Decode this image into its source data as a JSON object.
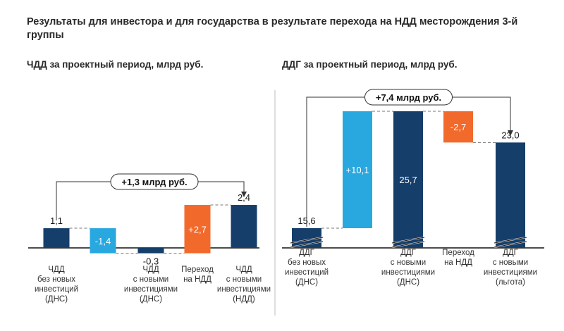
{
  "title": "Результаты для инвестора и для государства в результате перехода на НДД месторождения 3-й группы",
  "colors": {
    "dark": "#153E6B",
    "light": "#29A8E0",
    "orange": "#F26A2B",
    "divider": "#C8C8C8"
  },
  "chart_data": [
    {
      "type": "waterfall",
      "title": "ЧДД за проектный период, млрд руб.",
      "unit": "млрд руб.",
      "bars": [
        {
          "label": [
            "ЧДД",
            "без новых",
            "инвестиций",
            "(ДНС)"
          ],
          "value_label": "1,1",
          "start": 0,
          "end": 1.1,
          "kind": "total",
          "color": "#153E6B",
          "label_pos": "above"
        },
        {
          "label": [],
          "value_label": "-1,4",
          "start": 1.1,
          "end": -0.3,
          "kind": "delta",
          "color": "#29A8E0",
          "label_pos": "inside"
        },
        {
          "label": [
            "ЧДД",
            "с новыми",
            "инвестициями",
            "(ДНС)"
          ],
          "value_label": "-0,3",
          "start": 0,
          "end": -0.3,
          "kind": "total",
          "color": "#153E6B",
          "label_pos": "below"
        },
        {
          "label": [
            "Переход",
            "на НДД"
          ],
          "value_label": "+2,7",
          "start": -0.3,
          "end": 2.4,
          "kind": "delta",
          "color": "#F26A2B",
          "label_pos": "inside"
        },
        {
          "label": [
            "ЧДД",
            "с новыми",
            "инвестициями",
            "(НДД)"
          ],
          "value_label": "2,4",
          "start": 0,
          "end": 2.4,
          "kind": "total",
          "color": "#153E6B",
          "label_pos": "above"
        }
      ],
      "annotation": {
        "text": "+1,3 млрд руб.",
        "from_bar": 0,
        "to_bar": 4
      }
    },
    {
      "type": "waterfall",
      "title": "ДДГ за проектный период, млрд руб.",
      "unit": "млрд руб.",
      "axis_break": true,
      "bars": [
        {
          "label": [
            "ДДГ",
            "без новых",
            "инвестиций",
            "(ДНС)"
          ],
          "value_label": "15,6",
          "start": 0,
          "end": 15.6,
          "kind": "total",
          "color": "#153E6B",
          "label_pos": "above"
        },
        {
          "label": [],
          "value_label": "+10,1",
          "start": 15.6,
          "end": 25.7,
          "kind": "delta",
          "color": "#29A8E0",
          "label_pos": "inside"
        },
        {
          "label": [
            "ДДГ",
            "с новыми",
            "инвестициями",
            "(ДНС)"
          ],
          "value_label": "25,7",
          "start": 0,
          "end": 25.7,
          "kind": "total",
          "color": "#153E6B",
          "label_pos": "inside"
        },
        {
          "label": [
            "Переход",
            "на НДД"
          ],
          "value_label": "-2,7",
          "start": 25.7,
          "end": 23.0,
          "kind": "delta",
          "color": "#F26A2B",
          "label_pos": "inside"
        },
        {
          "label": [
            "ДДГ",
            "с новыми",
            "инвестициями",
            "(льгота)"
          ],
          "value_label": "23,0",
          "start": 0,
          "end": 23.0,
          "kind": "total",
          "color": "#153E6B",
          "label_pos": "above"
        }
      ],
      "annotation": {
        "text": "+7,4 млрд руб.",
        "from_bar": 0,
        "to_bar": 4
      }
    }
  ]
}
